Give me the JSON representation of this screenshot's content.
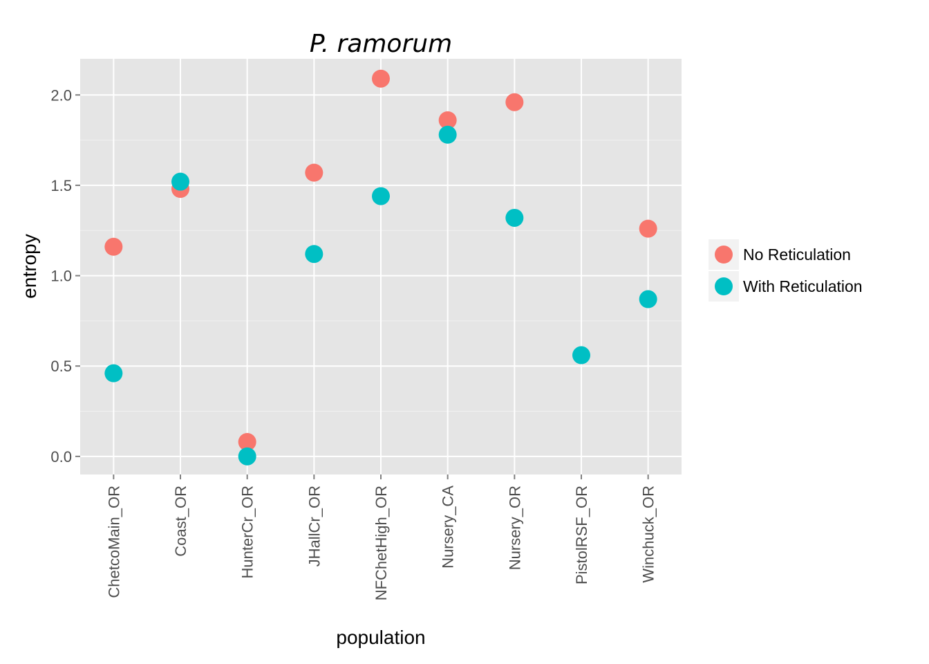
{
  "chart_data": {
    "type": "scatter",
    "title": "P. ramorum",
    "xlabel": "population",
    "ylabel": "entropy",
    "categories": [
      "ChetcoMain_OR",
      "Coast_OR",
      "HunterCr_OR",
      "JHallCr_OR",
      "NFChetHigh_OR",
      "Nursery_CA",
      "Nursery_OR",
      "PistolRSF_OR",
      "Winchuck_OR"
    ],
    "ylim": [
      -0.1,
      2.2
    ],
    "yticks": [
      0.0,
      0.5,
      1.0,
      1.5,
      2.0
    ],
    "ytick_labels": [
      "0.0",
      "0.5",
      "1.0",
      "1.5",
      "2.0"
    ],
    "grid": true,
    "legend_position": "right",
    "series": [
      {
        "name": "No Reticulation",
        "color": "#F8766D",
        "values": [
          1.16,
          1.48,
          0.08,
          1.57,
          2.09,
          1.86,
          1.96,
          null,
          1.26
        ]
      },
      {
        "name": "With Reticulation",
        "color": "#00BFC4",
        "values": [
          0.46,
          1.52,
          0.0,
          1.12,
          1.44,
          1.78,
          1.32,
          0.56,
          0.87
        ]
      }
    ]
  }
}
